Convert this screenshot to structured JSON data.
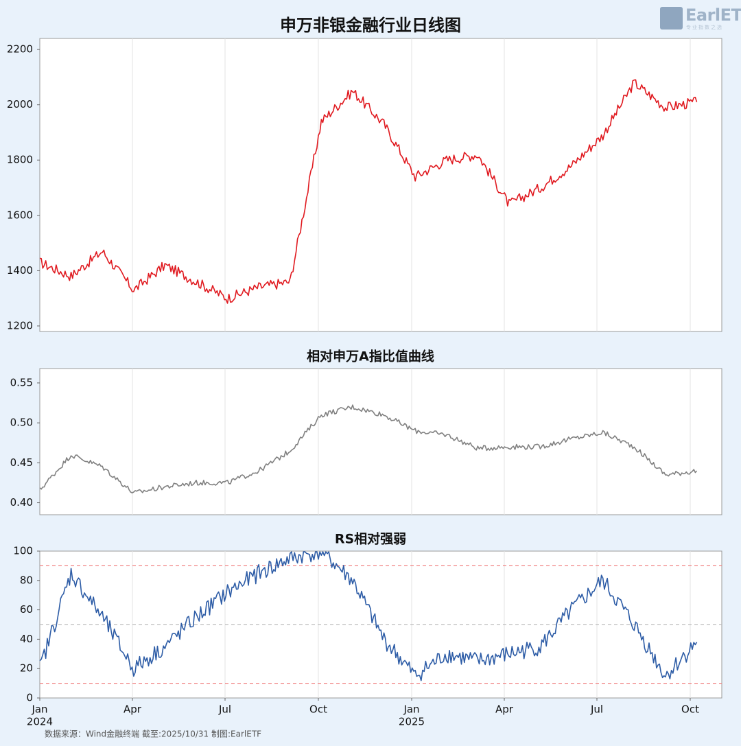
{
  "logo": {
    "text": "EarlETF",
    "sub": "专业指数之选"
  },
  "source": "数据来源：Wind金融终端 截至:2025/10/31 制图:EarlETF",
  "x_ticks": [
    "Jan\n2024",
    "Apr",
    "Jul",
    "Oct",
    "Jan\n2025",
    "Apr",
    "Jul",
    "Oct"
  ],
  "chart_data": [
    {
      "type": "line",
      "title": "申万非银金融行业日线图",
      "color": "#e0191f",
      "ylim": [
        1180,
        2240
      ],
      "yticks": [
        1200,
        1400,
        1600,
        1800,
        2000,
        2200
      ],
      "x": [
        "2024-01",
        "2024-02",
        "2024-03",
        "2024-04",
        "2024-05",
        "2024-06",
        "2024-07",
        "2024-08",
        "2024-09",
        "2024-10",
        "2024-11",
        "2024-12",
        "2025-01",
        "2025-02",
        "2025-03",
        "2025-04",
        "2025-05",
        "2025-06",
        "2025-07",
        "2025-08",
        "2025-09",
        "2025-10"
      ],
      "series": [
        {
          "values": [
            1430,
            1380,
            1470,
            1330,
            1420,
            1360,
            1300,
            1340,
            1360,
            1940,
            2050,
            1930,
            1740,
            1800,
            1820,
            1640,
            1700,
            1780,
            1890,
            2080,
            1990,
            2010
          ]
        }
      ]
    },
    {
      "type": "line",
      "title": "相对申万A指比值曲线",
      "color": "#808080",
      "ylim": [
        0.385,
        0.568
      ],
      "yticks": [
        0.4,
        0.45,
        0.5,
        0.55
      ],
      "x": [
        "2024-01",
        "2024-02",
        "2024-03",
        "2024-04",
        "2024-05",
        "2024-06",
        "2024-07",
        "2024-08",
        "2024-09",
        "2024-10",
        "2024-11",
        "2024-12",
        "2025-01",
        "2025-02",
        "2025-03",
        "2025-04",
        "2025-05",
        "2025-06",
        "2025-07",
        "2025-08",
        "2025-09",
        "2025-10"
      ],
      "series": [
        {
          "values": [
            0.416,
            0.46,
            0.445,
            0.412,
            0.42,
            0.425,
            0.425,
            0.44,
            0.465,
            0.51,
            0.52,
            0.51,
            0.49,
            0.485,
            0.468,
            0.47,
            0.47,
            0.48,
            0.488,
            0.47,
            0.435,
            0.44
          ]
        }
      ]
    },
    {
      "type": "line",
      "title": "RS相对强弱",
      "color": "#2d5ca6",
      "ylim": [
        0,
        100
      ],
      "yticks": [
        0,
        20,
        40,
        60,
        80,
        100
      ],
      "reference_lines": [
        {
          "y": 90,
          "color": "#f08080",
          "style": "dashed"
        },
        {
          "y": 50,
          "color": "#bbbbbb",
          "style": "dashed"
        },
        {
          "y": 10,
          "color": "#f08080",
          "style": "dashed"
        }
      ],
      "x": [
        "2024-01",
        "2024-02",
        "2024-03",
        "2024-04",
        "2024-05",
        "2024-06",
        "2024-07",
        "2024-08",
        "2024-09",
        "2024-10",
        "2024-11",
        "2024-12",
        "2025-01",
        "2025-02",
        "2025-03",
        "2025-04",
        "2025-05",
        "2025-06",
        "2025-07",
        "2025-08",
        "2025-09",
        "2025-10"
      ],
      "series": [
        {
          "values": [
            20,
            85,
            55,
            20,
            35,
            55,
            72,
            85,
            95,
            100,
            80,
            40,
            15,
            30,
            25,
            30,
            35,
            60,
            80,
            50,
            15,
            38
          ]
        }
      ]
    }
  ]
}
